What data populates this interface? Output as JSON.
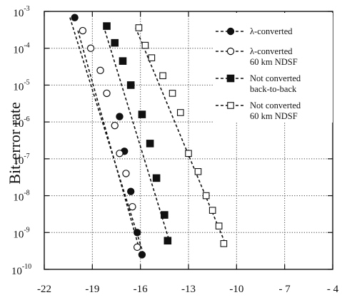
{
  "chart_data": {
    "type": "scatter",
    "title": "",
    "xlabel": "",
    "ylabel": "Bit-error rate",
    "xlim": [
      -22,
      -4
    ],
    "ylim_exp": [
      -10,
      -3
    ],
    "yscale": "log",
    "grid": true,
    "x_ticks": [
      -22,
      -19,
      -16,
      -13,
      -10,
      -7,
      -4
    ],
    "x_tick_labels": [
      "-22",
      "-19",
      "-16",
      "-13",
      "-10",
      "- 7",
      "- 4"
    ],
    "y_tick_labels": [
      {
        "base": "10",
        "exp": "-3"
      },
      {
        "base": "10",
        "exp": "-4"
      },
      {
        "base": "10",
        "exp": "-5"
      },
      {
        "base": "10",
        "exp": "-6"
      },
      {
        "base": "10",
        "exp": "-7"
      },
      {
        "base": "10",
        "exp": "-8"
      },
      {
        "base": "10",
        "exp": "-9"
      },
      {
        "base": "10",
        "exp": "-10"
      }
    ],
    "legend_placement": "top-right",
    "series": [
      {
        "key": "lc_b2b",
        "name_lines": [
          "λ-converted"
        ],
        "marker": "circle-filled",
        "points": [
          {
            "x": -20.1,
            "y": 0.00068
          },
          {
            "x": -17.3,
            "y": 1.4e-06
          },
          {
            "x": -17.0,
            "y": 1.6e-07
          },
          {
            "x": -16.6,
            "y": 1.3e-08
          },
          {
            "x": -16.2,
            "y": 1e-09
          },
          {
            "x": -15.9,
            "y": 2.5e-10
          }
        ],
        "fit": [
          {
            "x": -20.4,
            "y": 0.00068
          },
          {
            "x": -15.8,
            "y": 2.5e-10
          }
        ]
      },
      {
        "key": "lc_ndsf",
        "name_lines": [
          "λ-converted",
          "60 km NDSF"
        ],
        "marker": "circle-open",
        "points": [
          {
            "x": -19.6,
            "y": 0.0003
          },
          {
            "x": -19.1,
            "y": 0.0001
          },
          {
            "x": -18.5,
            "y": 2.5e-05
          },
          {
            "x": -18.1,
            "y": 6e-06
          },
          {
            "x": -17.6,
            "y": 8e-07
          },
          {
            "x": -17.3,
            "y": 1.4e-07
          },
          {
            "x": -16.9,
            "y": 4e-08
          },
          {
            "x": -16.5,
            "y": 5e-09
          },
          {
            "x": -16.2,
            "y": 4e-10
          }
        ],
        "fit": [
          {
            "x": -19.9,
            "y": 0.0003
          },
          {
            "x": -16.1,
            "y": 4e-10
          }
        ]
      },
      {
        "key": "nc_b2b",
        "name_lines": [
          "Not converted",
          "back-to-back"
        ],
        "marker": "square-filled",
        "points": [
          {
            "x": -18.1,
            "y": 0.0004
          },
          {
            "x": -17.6,
            "y": 0.00014
          },
          {
            "x": -17.1,
            "y": 4.5e-05
          },
          {
            "x": -16.6,
            "y": 1e-05
          },
          {
            "x": -15.9,
            "y": 1.6e-06
          },
          {
            "x": -15.4,
            "y": 2.6e-07
          },
          {
            "x": -15.0,
            "y": 3e-08
          },
          {
            "x": -14.5,
            "y": 3e-09
          },
          {
            "x": -14.3,
            "y": 6e-10
          }
        ],
        "fit": [
          {
            "x": -18.3,
            "y": 0.0004
          },
          {
            "x": -14.2,
            "y": 6e-10
          }
        ]
      },
      {
        "key": "nc_ndsf",
        "name_lines": [
          "Not converted",
          "60 km NDSF"
        ],
        "marker": "square-open",
        "points": [
          {
            "x": -16.1,
            "y": 0.00036
          },
          {
            "x": -15.7,
            "y": 0.00012
          },
          {
            "x": -15.3,
            "y": 5.5e-05
          },
          {
            "x": -14.6,
            "y": 1.8e-05
          },
          {
            "x": -14.0,
            "y": 6e-06
          },
          {
            "x": -13.5,
            "y": 1.8e-06
          },
          {
            "x": -13.0,
            "y": 1.4e-07
          },
          {
            "x": -12.4,
            "y": 4.5e-08
          },
          {
            "x": -11.9,
            "y": 1e-08
          },
          {
            "x": -11.5,
            "y": 4e-09
          },
          {
            "x": -11.1,
            "y": 1.5e-09
          },
          {
            "x": -10.8,
            "y": 5e-10
          }
        ],
        "fit": [
          {
            "x": -16.3,
            "y": 0.00036
          },
          {
            "x": -10.7,
            "y": 5e-10
          }
        ]
      }
    ]
  }
}
